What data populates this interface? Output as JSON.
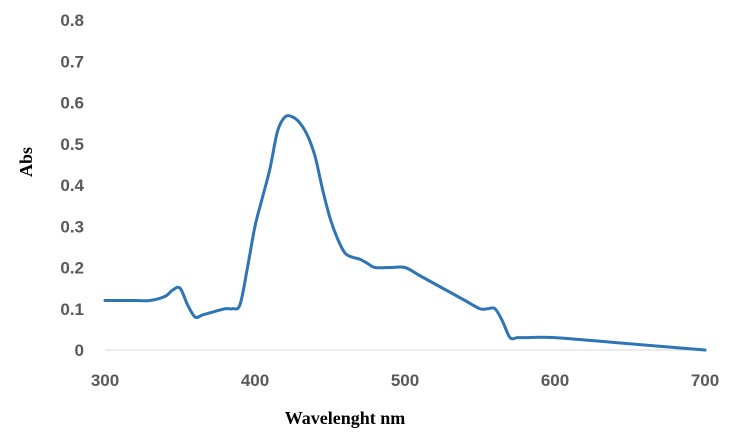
{
  "chart_data": {
    "type": "line",
    "title": "",
    "xlabel": "Wavelenght nm",
    "ylabel": "Abs",
    "xlim": [
      300,
      700
    ],
    "ylim": [
      0,
      0.8
    ],
    "x_ticks": [
      "300",
      "400",
      "500",
      "600",
      "700"
    ],
    "y_ticks": [
      "0",
      "0.1",
      "0.2",
      "0.3",
      "0.4",
      "0.5",
      "0.6",
      "0.7",
      "0.8"
    ],
    "grid": false,
    "legend": "none",
    "line_color": "#2E75B6",
    "series": [
      {
        "x": [
          300,
          320,
          330,
          340,
          345,
          350,
          355,
          360,
          365,
          370,
          380,
          385,
          390,
          395,
          400,
          405,
          410,
          415,
          420,
          425,
          430,
          435,
          440,
          445,
          450,
          455,
          460,
          465,
          470,
          475,
          480,
          490,
          500,
          510,
          520,
          530,
          540,
          550,
          555,
          560,
          565,
          570,
          575,
          580,
          600,
          650,
          700
        ],
        "y": [
          0.12,
          0.12,
          0.12,
          0.13,
          0.145,
          0.15,
          0.11,
          0.08,
          0.085,
          0.09,
          0.1,
          0.1,
          0.11,
          0.2,
          0.3,
          0.37,
          0.44,
          0.53,
          0.565,
          0.565,
          0.55,
          0.52,
          0.47,
          0.39,
          0.32,
          0.27,
          0.235,
          0.225,
          0.22,
          0.21,
          0.2,
          0.2,
          0.2,
          0.18,
          0.16,
          0.14,
          0.12,
          0.1,
          0.1,
          0.1,
          0.07,
          0.03,
          0.03,
          0.03,
          0.03,
          0.015,
          0.0
        ]
      }
    ]
  }
}
